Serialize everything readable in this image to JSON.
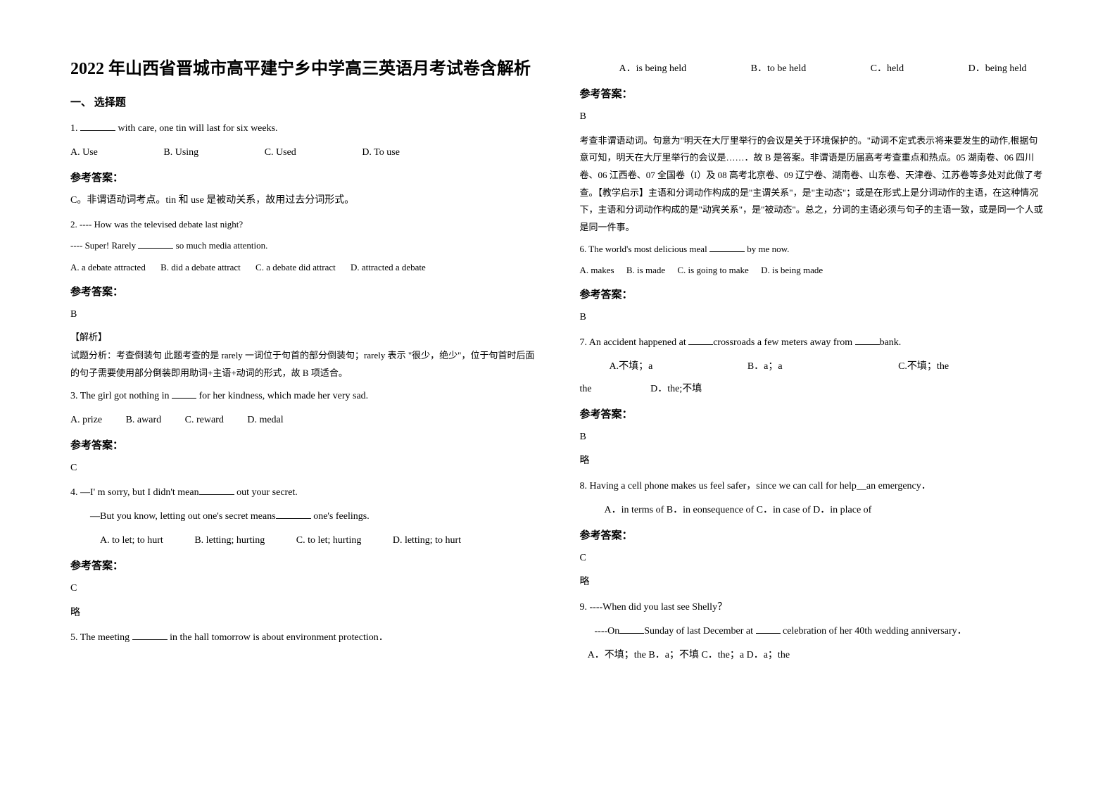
{
  "title": "2022 年山西省晋城市高平建宁乡中学高三英语月考试卷含解析",
  "section1": "一、 选择题",
  "ans_label": "参考答案：",
  "jiexi_label": "【解析】",
  "lue": "略",
  "q1": {
    "stem_pre": "1. ",
    "stem_post": " with care, one tin will last for six weeks.",
    "A": "A. Use",
    "B": "B. Using",
    "C": "C. Used",
    "D": "D. To use",
    "ans": "C。非谓语动词考点。tin 和 use 是被动关系，故用过去分词形式。"
  },
  "q2": {
    "l1": "2. ---- How was the televised debate last night?",
    "l2_pre": "---- Super! Rarely ",
    "l2_post": " so much media attention.",
    "A": "A. a debate attracted",
    "B": "B. did a debate attract",
    "C": "C. a debate did attract",
    "D": "D. attracted a debate",
    "ans": "B",
    "note": "试题分析：考查倒装句   此题考查的是 rarely 一词位于句首的部分倒装句；rarely 表示 \"很少，绝少\"，位于句首时后面的句子需要使用部分倒装即用助词+主语+动词的形式，故 B 项适合。"
  },
  "q3": {
    "stem_pre": "3. The girl got nothing in ",
    "stem_post": " for her kindness, which made her very sad.",
    "A": "A. prize",
    "B": "B. award",
    "C": "C. reward",
    "D": "D. medal",
    "ans": "C"
  },
  "q4": {
    "l1_pre": "4. —I' m sorry, but I didn't mean",
    "l1_post": " out your secret.",
    "l2_pre": "—But you know, letting out one's secret means",
    "l2_post": " one's feelings.",
    "A": "A. to let; to hurt",
    "B": "B. letting; hurting",
    "C": "C. to let; hurting",
    "D": "D. letting; to hurt",
    "ans": "C"
  },
  "q5": {
    "stem_pre": "5. The meeting ",
    "stem_post": " in the hall tomorrow is about environment protection．",
    "A": "A．is being held",
    "B": "B．to be held",
    "C": "C．held",
    "D": "D．being held",
    "ans": "B",
    "note": "考查非谓语动词。句意为\"明天在大厅里举行的会议是关于环境保护的。\"动词不定式表示将来要发生的动作,根据句意可知，明天在大厅里举行的会议是……．故 B 是答案。非谓语是历届高考考查重点和热点。05 湖南卷、06 四川卷、06 江西卷、07 全国卷（I）及 08 高考北京卷、09 辽宁卷、湖南卷、山东卷、天津卷、江苏卷等多处对此做了考查。【教学启示】主语和分词动作构成的是\"主谓关系\"，是\"主动态\"；或是在形式上是分词动作的主语，在这种情况下，主语和分词动作构成的是\"动宾关系\"，是\"被动态\"。总之，分词的主语必须与句子的主语一致，或是同一个人或是同一件事。"
  },
  "q6": {
    "stem_pre": "6. The world's most delicious meal ",
    "stem_post": " by me now.",
    "A": "A. makes",
    "B": "B. is made",
    "C": "C. is going to make",
    "D": "D. is being made",
    "ans": "B"
  },
  "q7": {
    "stem_pre": "7. An accident happened at ",
    "stem_mid": "crossroads a few meters away from ",
    "stem_post": "bank.",
    "A": "A.不填；a",
    "B": "B．a；a",
    "C": "C.不填；the",
    "D": "D．the;不填",
    "ans": "B"
  },
  "q8": {
    "stem": "8. Having a cell phone makes us feel safer，since we can call for help__an emergency．",
    "opts": "A．in terms of   B．in eonsequence of   C．in case of   D．in place of",
    "ans": "C"
  },
  "q9": {
    "l1": "9. ----When did you last see Shelly？",
    "l2_pre": "----On",
    "l2_mid": "Sunday of last December at ",
    "l2_post": " celebration of her 40th wedding anniversary．",
    "opts": "A．不填；the  B．a；不填  C．the；a  D．a；the"
  }
}
